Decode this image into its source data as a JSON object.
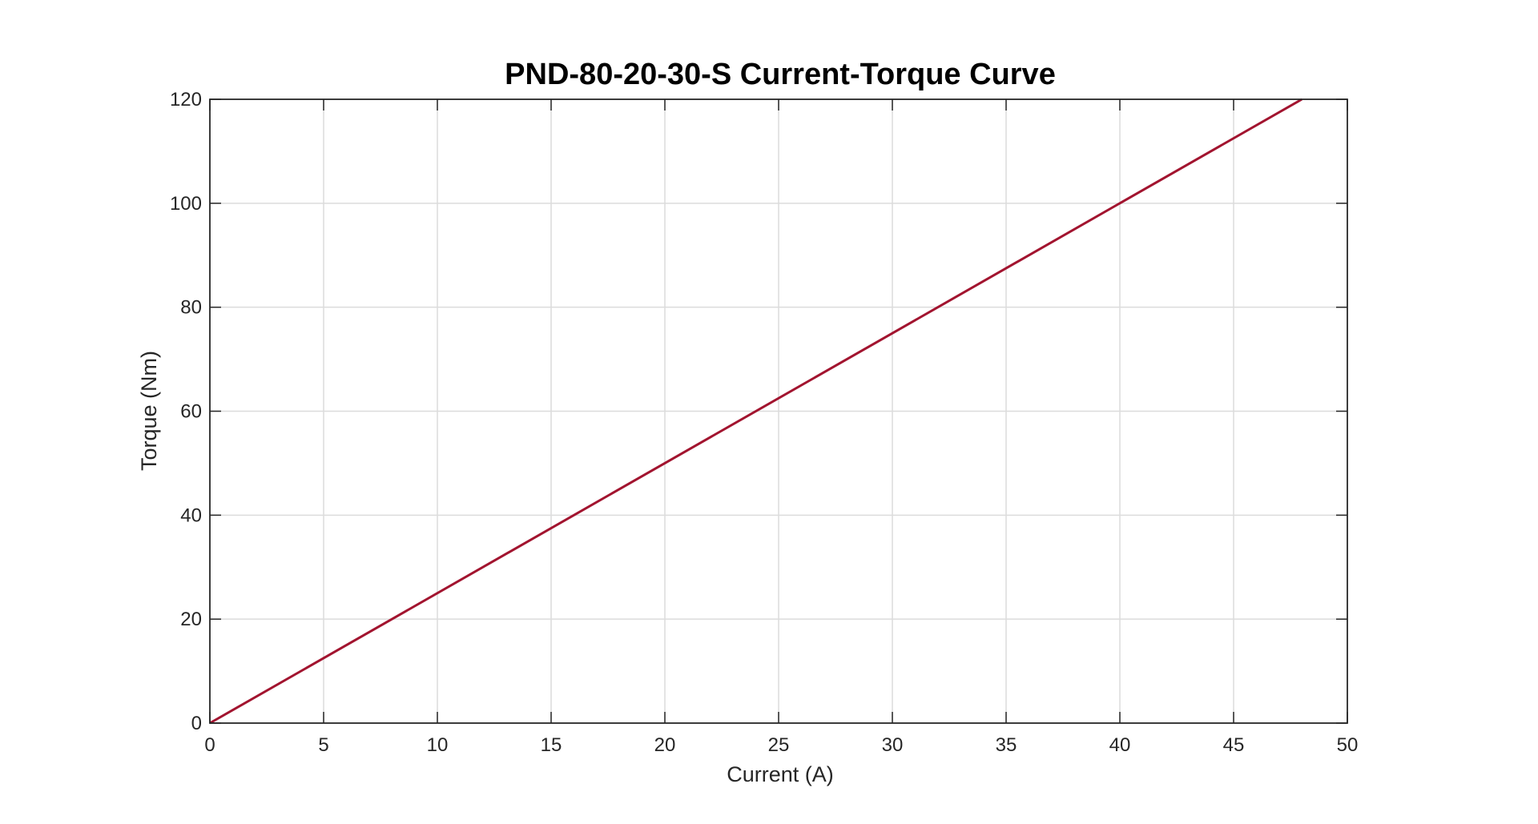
{
  "chart_data": {
    "type": "line",
    "title": "PND-80-20-30-S Current-Torque Curve",
    "xlabel": "Current (A)",
    "ylabel": "Torque (Nm)",
    "xlim": [
      0,
      50
    ],
    "ylim": [
      0,
      120
    ],
    "xticks": [
      0,
      5,
      10,
      15,
      20,
      25,
      30,
      35,
      40,
      45,
      50
    ],
    "yticks": [
      0,
      20,
      40,
      60,
      80,
      100,
      120
    ],
    "xtick_labels": [
      "0",
      "5",
      "10",
      "15",
      "20",
      "25",
      "30",
      "35",
      "40",
      "45",
      "50"
    ],
    "ytick_labels": [
      "0",
      "20",
      "40",
      "60",
      "80",
      "100",
      "120"
    ],
    "grid": true,
    "series": [
      {
        "color": "#a2142f",
        "x": [
          0,
          48
        ],
        "y": [
          0,
          120
        ]
      }
    ]
  }
}
